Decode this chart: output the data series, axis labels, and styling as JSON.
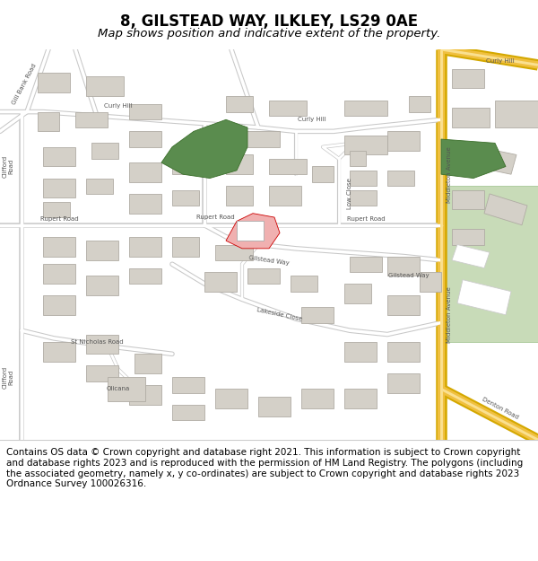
{
  "title": "8, GILSTEAD WAY, ILKLEY, LS29 0AE",
  "subtitle": "Map shows position and indicative extent of the property.",
  "footer": "Contains OS data © Crown copyright and database right 2021. This information is subject to Crown copyright and database rights 2023 and is reproduced with the permission of HM Land Registry. The polygons (including the associated geometry, namely x, y co-ordinates) are subject to Crown copyright and database rights 2023 Ordnance Survey 100026316.",
  "map_bg": "#f0ede8",
  "road_white": "#ffffff",
  "road_outline": "#c8c8c8",
  "yellow_fill": "#f0c040",
  "yellow_outline": "#d4a800",
  "yellow_inner": "#fae090",
  "building_fill": "#d4d0c8",
  "building_edge": "#b0aca4",
  "green_dark": "#5a8c4e",
  "green_light": "#c8dbb8",
  "red_fill": "#f0b0b0",
  "red_edge": "#cc0000",
  "white_bld": "#ffffff",
  "footer_bg": "#ffffff",
  "title_size": 12,
  "subtitle_size": 9.5,
  "footer_size": 7.5,
  "road_label_size": 5.0,
  "road_label_color": "#555555"
}
